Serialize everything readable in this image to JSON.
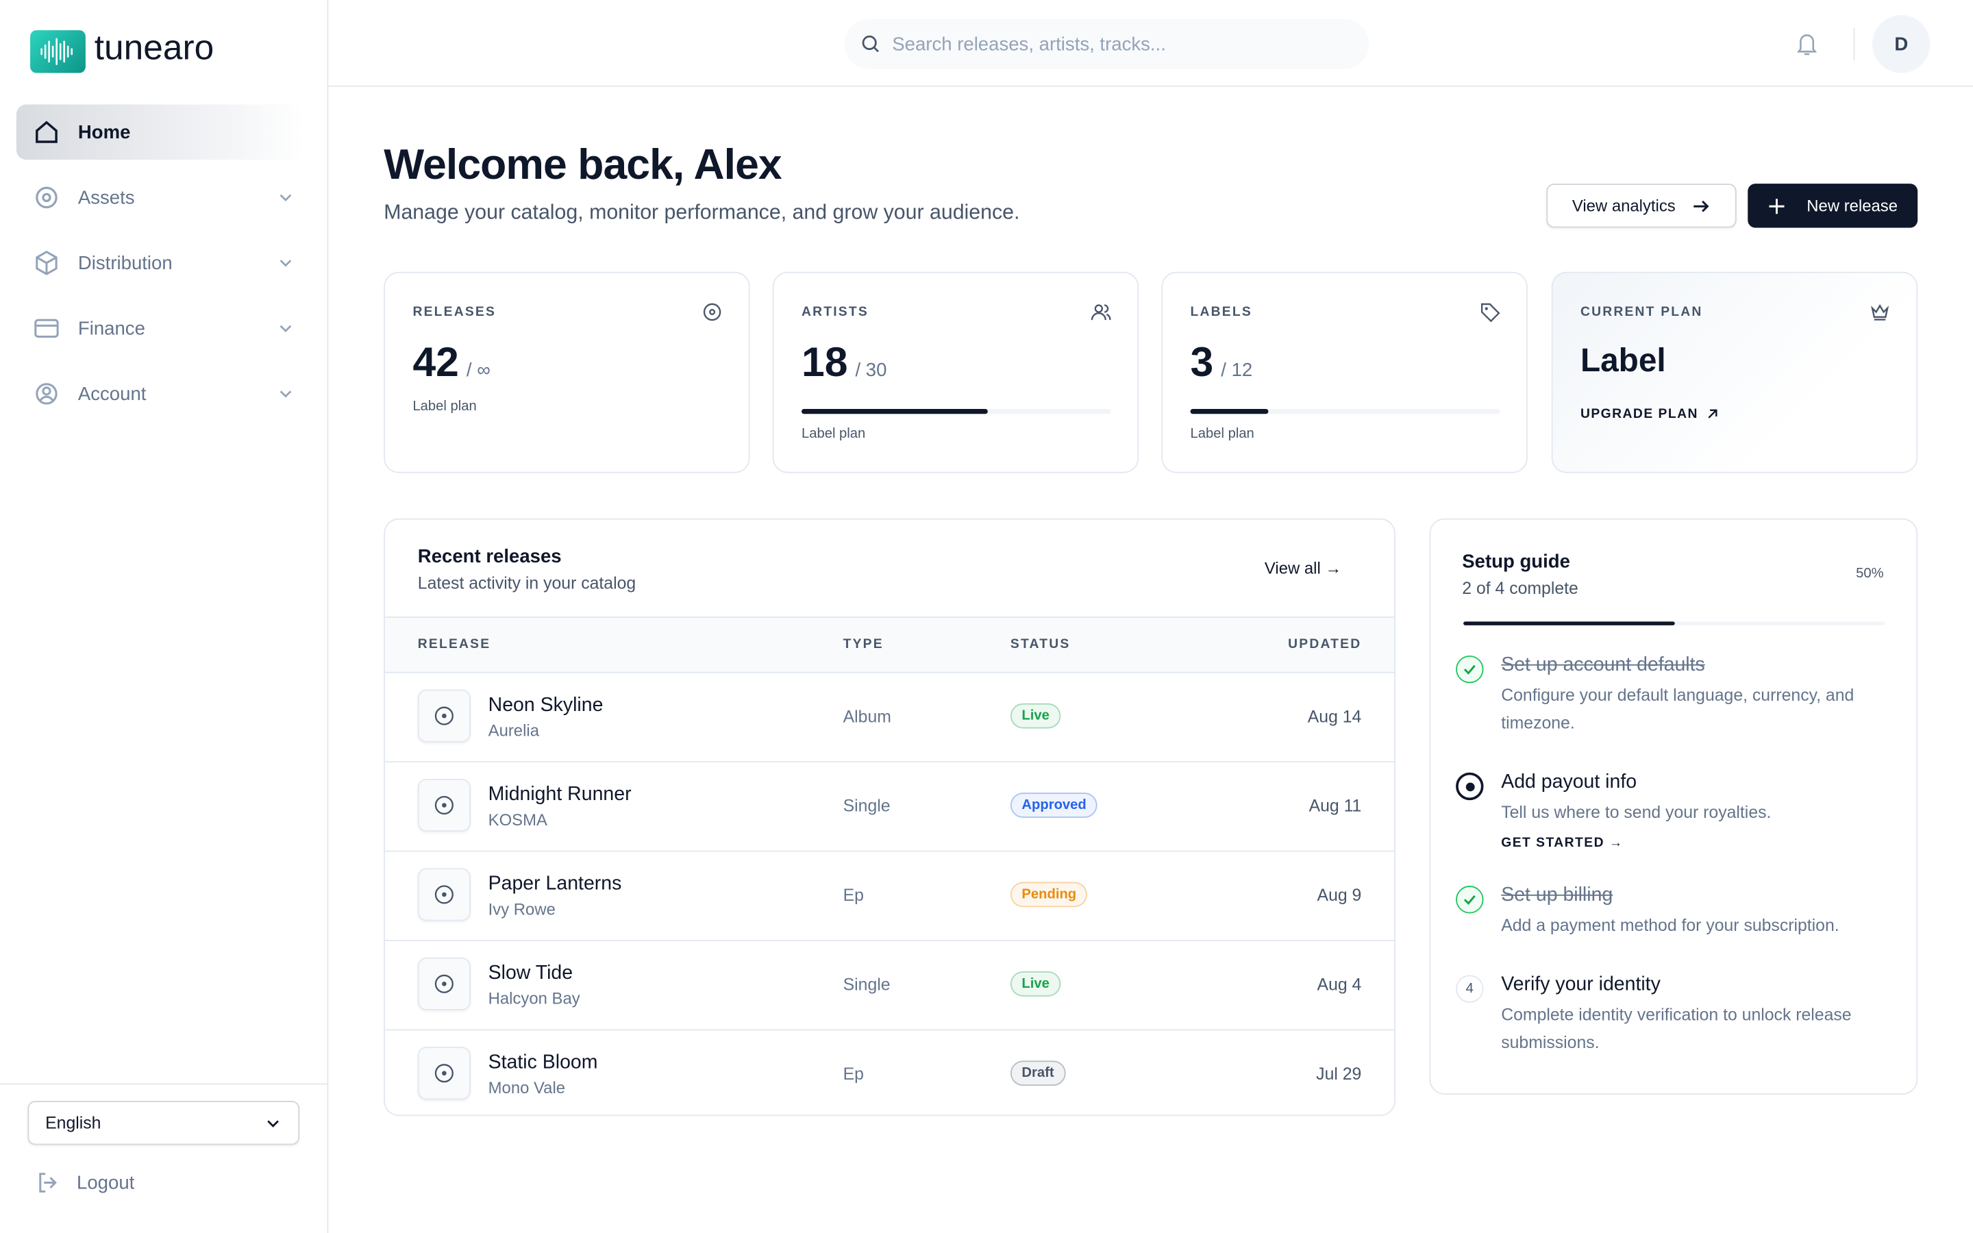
{
  "brand": "tunearo",
  "nav": [
    "Home",
    "Assets",
    "Distribution",
    "Finance",
    "Account"
  ],
  "language": "English",
  "logout": "Logout",
  "search_placeholder": "Search releases, artists, tracks...",
  "avatar": "D",
  "header": {
    "title": "Welcome back, Alex",
    "subtitle": "Manage your catalog, monitor performance, and grow your audience.",
    "secondary_button": "View analytics",
    "primary_button": "New release"
  },
  "stats": [
    {
      "label": "RELEASES",
      "value": 42,
      "limit": {
        "label": "/ ∞"
      },
      "note": "Label plan"
    },
    {
      "label": "ARTISTS",
      "value": 18,
      "limit": {
        "value": 30,
        "label": "/ 30"
      },
      "note": "Label plan"
    },
    {
      "label": "LABELS",
      "value": 3,
      "limit": {
        "value": 12,
        "label": "/ 12"
      },
      "note": "Label plan"
    }
  ],
  "plan": {
    "label": "CURRENT PLAN",
    "name": "Label",
    "link": "UPGRADE PLAN"
  },
  "releases": {
    "title": "Recent releases",
    "subtitle": "Latest activity in your catalog",
    "link": "View all →",
    "columns": [
      "RELEASE",
      "TYPE",
      "STATUS",
      "UPDATED"
    ],
    "rows": [
      {
        "name": "Neon Skyline",
        "artist": "Aurelia",
        "type": "Album",
        "status": "Live",
        "status_color": "#16a34a",
        "updated": "Aug 14"
      },
      {
        "name": "Midnight Runner",
        "artist": "KOSMA",
        "type": "Single",
        "status": "Approved",
        "status_color": "#2563eb",
        "updated": "Aug 11"
      },
      {
        "name": "Paper Lanterns",
        "artist": "Ivy Rowe",
        "type": "Ep",
        "status": "Pending",
        "status_color": "#ea8a0c",
        "updated": "Aug 9"
      },
      {
        "name": "Slow Tide",
        "artist": "Halcyon Bay",
        "type": "Single",
        "status": "Live",
        "status_color": "#16a34a",
        "updated": "Aug 4"
      },
      {
        "name": "Static Bloom",
        "artist": "Mono Vale",
        "type": "Ep",
        "status": "Draft",
        "status_color": "#475569",
        "updated": "Jul 29"
      }
    ]
  },
  "setup": {
    "title": "Setup guide",
    "subtitle": "2 of 4 complete",
    "progress": {
      "value": 50,
      "label": "50%"
    },
    "steps": [
      {
        "title": "Set up account defaults",
        "text": "Configure your default language, currency, and timezone.",
        "state": "done"
      },
      {
        "title": "Add payout info",
        "text": "Tell us where to send your royalties.",
        "state": "current",
        "action": "GET STARTED →"
      },
      {
        "title": "Set up billing",
        "text": "Add a payment method for your subscription.",
        "state": "done"
      },
      {
        "title": "Verify your identity",
        "text": "Complete identity verification to unlock release submissions.",
        "state": "todo",
        "number": 4
      }
    ]
  }
}
